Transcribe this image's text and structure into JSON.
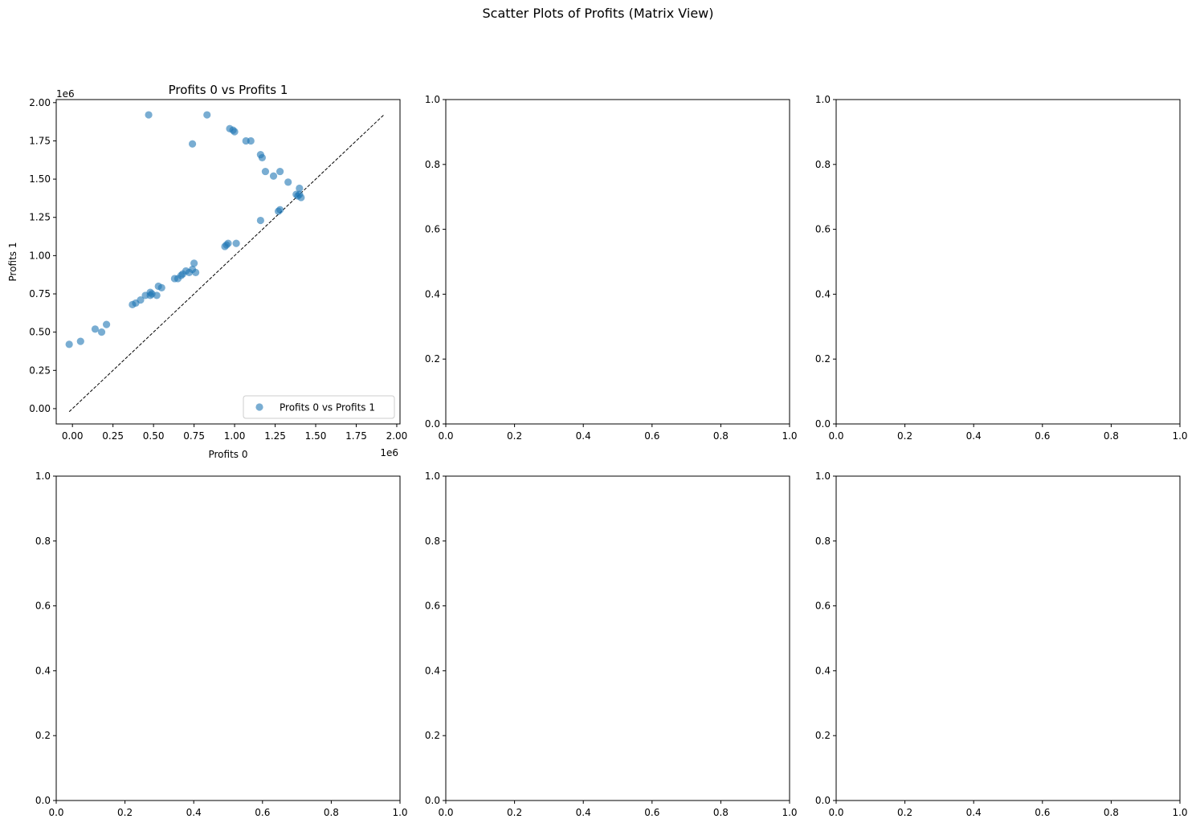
{
  "figure": {
    "suptitle": "Scatter Plots of Profits (Matrix View)"
  },
  "chart_data": [
    {
      "type": "scatter",
      "title": "Profits 0 vs Profits 1",
      "xlabel": "Profits 0",
      "ylabel": "Profits 1",
      "x_offset_label": "1e6",
      "y_offset_label": "1e6",
      "xlim": [
        -0.1,
        2.02
      ],
      "ylim": [
        -0.1,
        2.02
      ],
      "xticks": [
        0.0,
        0.25,
        0.5,
        0.75,
        1.0,
        1.25,
        1.5,
        1.75,
        2.0
      ],
      "xtick_labels": [
        "0.00",
        "0.25",
        "0.50",
        "0.75",
        "1.00",
        "1.25",
        "1.50",
        "1.75",
        "2.00"
      ],
      "yticks": [
        0.0,
        0.25,
        0.5,
        0.75,
        1.0,
        1.25,
        1.5,
        1.75,
        2.0
      ],
      "ytick_labels": [
        "0.00",
        "0.25",
        "0.50",
        "0.75",
        "1.00",
        "1.25",
        "1.50",
        "1.75",
        "2.00"
      ],
      "legend": {
        "label": "Profits 0 vs Profits 1",
        "position": "lower right"
      },
      "marker_color": "#1f77b4",
      "reference_line": {
        "style": "dashed",
        "color": "#000000",
        "from": [
          -0.02,
          -0.02
        ],
        "to": [
          1.92,
          1.92
        ]
      },
      "series": [
        {
          "name": "Profits 0 vs Profits 1",
          "points": [
            [
              -0.02,
              0.42
            ],
            [
              0.05,
              0.44
            ],
            [
              0.14,
              0.52
            ],
            [
              0.18,
              0.5
            ],
            [
              0.21,
              0.55
            ],
            [
              0.37,
              0.68
            ],
            [
              0.39,
              0.69
            ],
            [
              0.42,
              0.71
            ],
            [
              0.45,
              0.74
            ],
            [
              0.48,
              0.76
            ],
            [
              0.48,
              0.74
            ],
            [
              0.49,
              0.75
            ],
            [
              0.52,
              0.74
            ],
            [
              0.53,
              0.8
            ],
            [
              0.55,
              0.79
            ],
            [
              0.63,
              0.85
            ],
            [
              0.65,
              0.85
            ],
            [
              0.67,
              0.87
            ],
            [
              0.68,
              0.88
            ],
            [
              0.7,
              0.9
            ],
            [
              0.72,
              0.89
            ],
            [
              0.74,
              0.91
            ],
            [
              0.75,
              0.95
            ],
            [
              0.76,
              0.89
            ],
            [
              0.94,
              1.06
            ],
            [
              0.95,
              1.07
            ],
            [
              0.96,
              1.08
            ],
            [
              1.01,
              1.08
            ],
            [
              1.16,
              1.23
            ],
            [
              1.27,
              1.29
            ],
            [
              1.28,
              1.3
            ],
            [
              1.38,
              1.4
            ],
            [
              1.39,
              1.39
            ],
            [
              1.4,
              1.4
            ],
            [
              1.41,
              1.38
            ],
            [
              1.4,
              1.44
            ],
            [
              1.33,
              1.48
            ],
            [
              1.24,
              1.52
            ],
            [
              1.28,
              1.55
            ],
            [
              1.19,
              1.55
            ],
            [
              1.17,
              1.64
            ],
            [
              1.16,
              1.66
            ],
            [
              1.1,
              1.75
            ],
            [
              1.07,
              1.75
            ],
            [
              1.0,
              1.81
            ],
            [
              0.99,
              1.82
            ],
            [
              0.97,
              1.83
            ],
            [
              0.83,
              1.92
            ],
            [
              0.47,
              1.92
            ],
            [
              0.74,
              1.73
            ]
          ]
        }
      ]
    },
    {
      "type": "scatter",
      "xlim": [
        0,
        1
      ],
      "ylim": [
        0,
        1
      ],
      "xticks": [
        0.0,
        0.2,
        0.4,
        0.6,
        0.8,
        1.0
      ],
      "xtick_labels": [
        "0.0",
        "0.2",
        "0.4",
        "0.6",
        "0.8",
        "1.0"
      ],
      "yticks": [
        0.0,
        0.2,
        0.4,
        0.6,
        0.8,
        1.0
      ],
      "ytick_labels": [
        "0.0",
        "0.2",
        "0.4",
        "0.6",
        "0.8",
        "1.0"
      ]
    },
    {
      "type": "scatter",
      "xlim": [
        0,
        1
      ],
      "ylim": [
        0,
        1
      ],
      "xticks": [
        0.0,
        0.2,
        0.4,
        0.6,
        0.8,
        1.0
      ],
      "xtick_labels": [
        "0.0",
        "0.2",
        "0.4",
        "0.6",
        "0.8",
        "1.0"
      ],
      "yticks": [
        0.0,
        0.2,
        0.4,
        0.6,
        0.8,
        1.0
      ],
      "ytick_labels": [
        "0.0",
        "0.2",
        "0.4",
        "0.6",
        "0.8",
        "1.0"
      ]
    },
    {
      "type": "scatter",
      "xlim": [
        0,
        1
      ],
      "ylim": [
        0,
        1
      ],
      "xticks": [
        0.0,
        0.2,
        0.4,
        0.6,
        0.8,
        1.0
      ],
      "xtick_labels": [
        "0.0",
        "0.2",
        "0.4",
        "0.6",
        "0.8",
        "1.0"
      ],
      "yticks": [
        0.0,
        0.2,
        0.4,
        0.6,
        0.8,
        1.0
      ],
      "ytick_labels": [
        "0.0",
        "0.2",
        "0.4",
        "0.6",
        "0.8",
        "1.0"
      ]
    },
    {
      "type": "scatter",
      "xlim": [
        0,
        1
      ],
      "ylim": [
        0,
        1
      ],
      "xticks": [
        0.0,
        0.2,
        0.4,
        0.6,
        0.8,
        1.0
      ],
      "xtick_labels": [
        "0.0",
        "0.2",
        "0.4",
        "0.6",
        "0.8",
        "1.0"
      ],
      "yticks": [
        0.0,
        0.2,
        0.4,
        0.6,
        0.8,
        1.0
      ],
      "ytick_labels": [
        "0.0",
        "0.2",
        "0.4",
        "0.6",
        "0.8",
        "1.0"
      ]
    },
    {
      "type": "scatter",
      "xlim": [
        0,
        1
      ],
      "ylim": [
        0,
        1
      ],
      "xticks": [
        0.0,
        0.2,
        0.4,
        0.6,
        0.8,
        1.0
      ],
      "xtick_labels": [
        "0.0",
        "0.2",
        "0.4",
        "0.6",
        "0.8",
        "1.0"
      ],
      "yticks": [
        0.0,
        0.2,
        0.4,
        0.6,
        0.8,
        1.0
      ],
      "ytick_labels": [
        "0.0",
        "0.2",
        "0.4",
        "0.6",
        "0.8",
        "1.0"
      ]
    }
  ]
}
